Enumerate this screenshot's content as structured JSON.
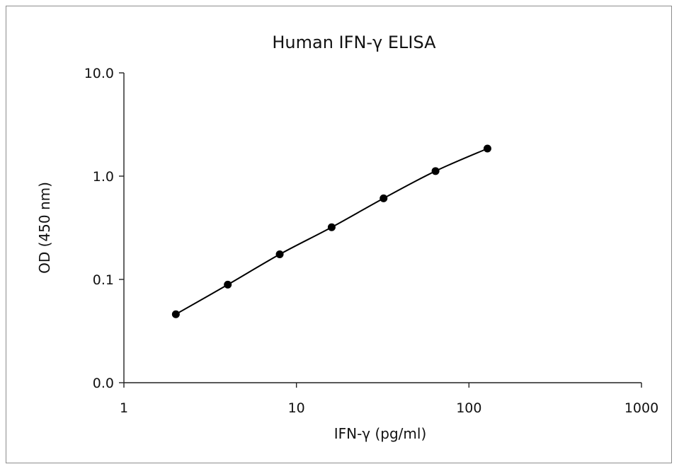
{
  "chart_data": {
    "type": "line",
    "title": "Human IFN-γ ELISA",
    "xlabel": "IFN-γ (pg/ml)",
    "ylabel": "OD (450 nm)",
    "x_scale": "log",
    "y_scale": "log",
    "xlim": [
      1,
      1000
    ],
    "ylim": [
      0.01,
      10
    ],
    "x_ticks": [
      1,
      10,
      100,
      1000
    ],
    "x_tick_labels": [
      "1",
      "10",
      "100",
      "1000"
    ],
    "y_ticks": [
      0.01,
      0.1,
      1,
      10
    ],
    "y_tick_labels": [
      "0.0",
      "0.1",
      "1.0",
      "10.0"
    ],
    "grid": false,
    "legend": "none",
    "series": [
      {
        "color": "#000000",
        "marker": "circle",
        "x": [
          2,
          4,
          8,
          16,
          32,
          64,
          128
        ],
        "y": [
          0.046,
          0.089,
          0.175,
          0.32,
          0.61,
          1.12,
          1.85
        ]
      }
    ]
  }
}
